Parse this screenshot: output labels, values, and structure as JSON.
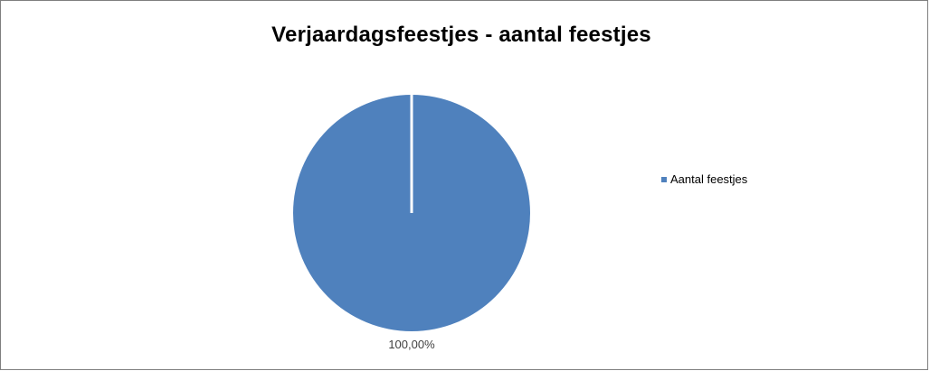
{
  "chart_data": {
    "type": "pie",
    "title": "Verjaardagsfeestjes - aantal feestjes",
    "categories": [
      "Aantal feestjes"
    ],
    "values": [
      100
    ],
    "data_labels": [
      "100,00%"
    ],
    "legend": {
      "entries": [
        "Aantal feestjes"
      ],
      "placement": "right"
    },
    "colors": {
      "slice": "#4F81BD",
      "separator": "#FFFFFF",
      "border": "#7F7F7F"
    }
  }
}
